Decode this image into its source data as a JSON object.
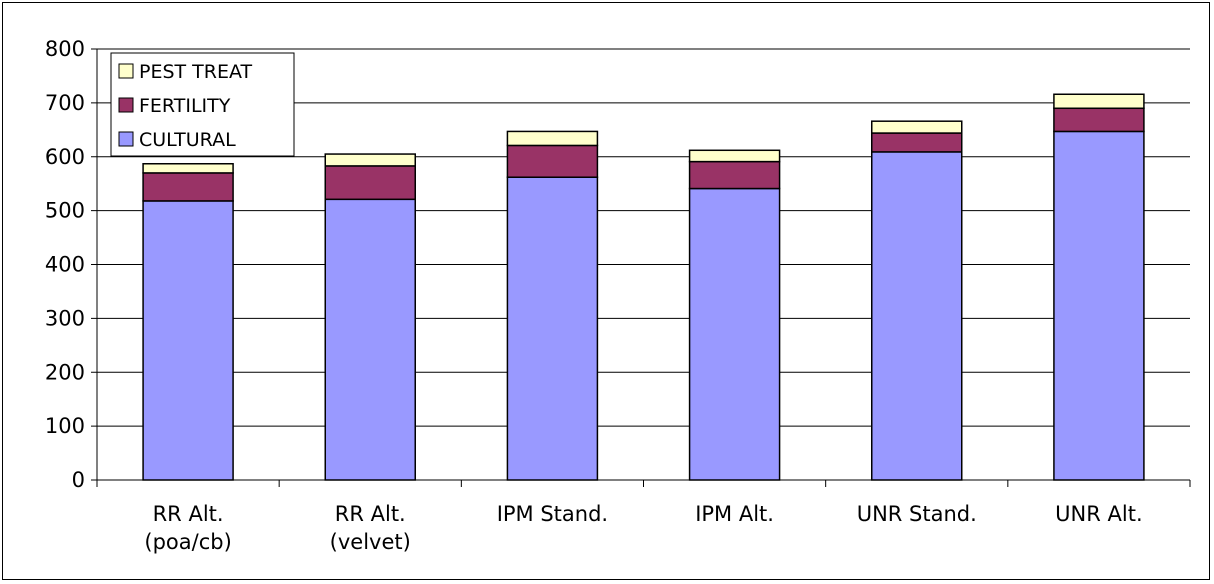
{
  "chart_data": {
    "type": "bar",
    "stacked": true,
    "categories": [
      [
        "RR Alt.",
        "(poa/cb)"
      ],
      [
        "RR Alt.",
        "(velvet)"
      ],
      [
        "IPM Stand."
      ],
      [
        "IPM Alt."
      ],
      [
        "UNR Stand."
      ],
      [
        "UNR Alt."
      ]
    ],
    "series": [
      {
        "name": "CULTURAL",
        "values": [
          518,
          521,
          562,
          541,
          609,
          647
        ],
        "color": "#9999ff"
      },
      {
        "name": "FERTILITY",
        "values": [
          52,
          62,
          59,
          50,
          35,
          43
        ],
        "color": "#993366"
      },
      {
        "name": "PEST TREAT",
        "values": [
          17,
          22,
          26,
          21,
          22,
          26
        ],
        "color": "#ffffcc"
      }
    ],
    "ylim": [
      0,
      800
    ],
    "yticks": [
      0,
      100,
      200,
      300,
      400,
      500,
      600,
      700,
      800
    ],
    "grid": "horizontal",
    "legend_position": "top-left",
    "legend_order": [
      "PEST TREAT",
      "FERTILITY",
      "CULTURAL"
    ],
    "title": "",
    "xlabel": "",
    "ylabel": ""
  }
}
